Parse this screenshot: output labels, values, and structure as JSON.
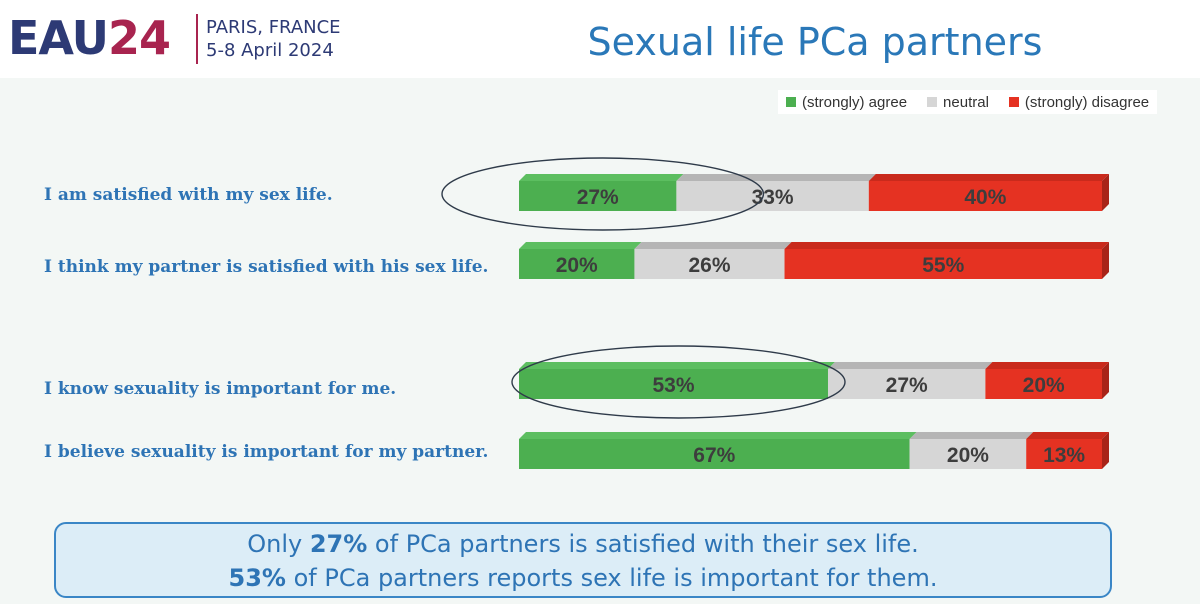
{
  "header": {
    "logo_main": "EAU",
    "logo_year": "24",
    "event_place": "PARIS, FRANCE",
    "event_date": "5-8 April 2024"
  },
  "title": "Sexual life PCa partners",
  "legend": [
    {
      "label": "(strongly) agree",
      "color": "#4caf50"
    },
    {
      "label": "neutral",
      "color": "#d6d6d6"
    },
    {
      "label": "(strongly) disagree",
      "color": "#e53222"
    }
  ],
  "chart_data": {
    "type": "bar",
    "orientation": "horizontal",
    "stacked": true,
    "unit": "%",
    "categories": [
      "I am satisfied with my sex life.",
      "I think my partner is satisfied with his sex life.",
      "I know sexuality is important for me.",
      "I believe sexuality is important for my partner."
    ],
    "series": [
      {
        "name": "(strongly) agree",
        "values": [
          27,
          20,
          53,
          67
        ],
        "color": "#4caf50"
      },
      {
        "name": "neutral",
        "values": [
          33,
          26,
          27,
          20
        ],
        "color": "#d6d6d6"
      },
      {
        "name": "(strongly) disagree",
        "values": [
          40,
          55,
          20,
          13
        ],
        "color": "#e53222"
      }
    ],
    "highlighted_rows": [
      0,
      2
    ],
    "legend_position": "top-right"
  },
  "summary": {
    "line1_pre": "Only ",
    "line1_bold": "27%",
    "line1_post": " of PCa partners is satisfied with their sex life.",
    "line2_bold": "53%",
    "line2_post": " of PCa partners reports sex life is important for them."
  }
}
